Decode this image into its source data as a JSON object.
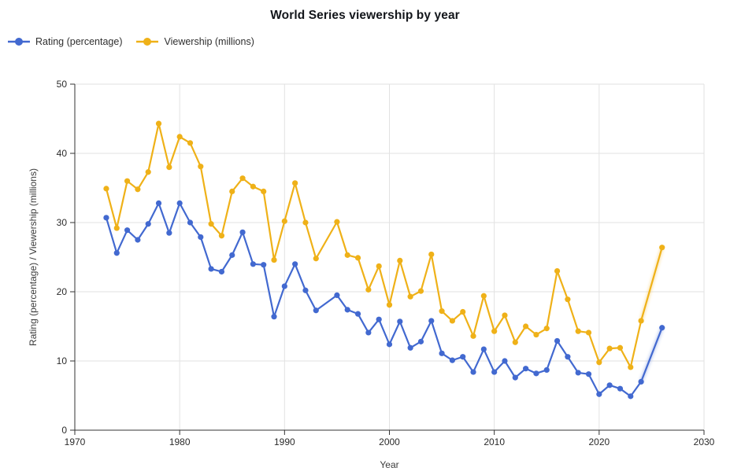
{
  "page": {
    "background": "#ffffff"
  },
  "chart_data": {
    "type": "line",
    "title": "World Series viewership by year",
    "xlabel": "Year",
    "ylabel": "Rating (percentage) / Viewership (millions)",
    "xlim": [
      1970,
      2030
    ],
    "ylim": [
      0,
      50
    ],
    "x_ticks": [
      1970,
      1980,
      1990,
      2000,
      2010,
      2020,
      2030
    ],
    "y_ticks": [
      0,
      10,
      20,
      30,
      40,
      50
    ],
    "grid": true,
    "legend_position": "top-left",
    "missing_years": [
      1994,
      2025
    ],
    "colors": {
      "rating": "#4269d0",
      "viewership": "#efb118",
      "grid_line": "#e2e2e2",
      "axis_line": "#333333",
      "tick_text": "#2b2b2b",
      "title_text": "#13161b"
    },
    "series": [
      {
        "name": "Rating (percentage)",
        "color": "#4269d0",
        "marker": "circle",
        "points": [
          [
            1973,
            30.7
          ],
          [
            1974,
            25.6
          ],
          [
            1975,
            28.9
          ],
          [
            1976,
            27.5
          ],
          [
            1977,
            29.8
          ],
          [
            1978,
            32.8
          ],
          [
            1979,
            28.5
          ],
          [
            1980,
            32.8
          ],
          [
            1981,
            30.0
          ],
          [
            1982,
            27.9
          ],
          [
            1983,
            23.3
          ],
          [
            1984,
            22.9
          ],
          [
            1985,
            25.3
          ],
          [
            1986,
            28.6
          ],
          [
            1987,
            24.0
          ],
          [
            1988,
            23.9
          ],
          [
            1989,
            16.4
          ],
          [
            1990,
            20.8
          ],
          [
            1991,
            24.0
          ],
          [
            1992,
            20.2
          ],
          [
            1993,
            17.3
          ],
          [
            1995,
            19.5
          ],
          [
            1996,
            17.4
          ],
          [
            1997,
            16.8
          ],
          [
            1998,
            14.1
          ],
          [
            1999,
            16.0
          ],
          [
            2000,
            12.4
          ],
          [
            2001,
            15.7
          ],
          [
            2002,
            11.9
          ],
          [
            2003,
            12.8
          ],
          [
            2004,
            15.8
          ],
          [
            2005,
            11.1
          ],
          [
            2006,
            10.1
          ],
          [
            2007,
            10.6
          ],
          [
            2008,
            8.4
          ],
          [
            2009,
            11.7
          ],
          [
            2010,
            8.4
          ],
          [
            2011,
            10.0
          ],
          [
            2012,
            7.6
          ],
          [
            2013,
            8.9
          ],
          [
            2014,
            8.2
          ],
          [
            2015,
            8.7
          ],
          [
            2016,
            12.9
          ],
          [
            2017,
            10.6
          ],
          [
            2018,
            8.3
          ],
          [
            2019,
            8.1
          ],
          [
            2020,
            5.2
          ],
          [
            2021,
            6.5
          ],
          [
            2022,
            6.0
          ],
          [
            2023,
            4.9
          ],
          [
            2024,
            7.0
          ],
          [
            2026,
            14.8
          ]
        ]
      },
      {
        "name": "Viewership (millions)",
        "color": "#efb118",
        "marker": "circle",
        "points": [
          [
            1973,
            34.9
          ],
          [
            1974,
            29.2
          ],
          [
            1975,
            36.0
          ],
          [
            1976,
            34.8
          ],
          [
            1977,
            37.3
          ],
          [
            1978,
            44.3
          ],
          [
            1979,
            38.0
          ],
          [
            1980,
            42.4
          ],
          [
            1981,
            41.5
          ],
          [
            1982,
            38.1
          ],
          [
            1983,
            29.8
          ],
          [
            1984,
            28.1
          ],
          [
            1985,
            34.5
          ],
          [
            1986,
            36.4
          ],
          [
            1987,
            35.2
          ],
          [
            1988,
            34.5
          ],
          [
            1989,
            24.6
          ],
          [
            1990,
            30.2
          ],
          [
            1991,
            35.7
          ],
          [
            1992,
            30.0
          ],
          [
            1993,
            24.8
          ],
          [
            1995,
            30.1
          ],
          [
            1996,
            25.3
          ],
          [
            1997,
            24.9
          ],
          [
            1998,
            20.3
          ],
          [
            1999,
            23.7
          ],
          [
            2000,
            18.1
          ],
          [
            2001,
            24.5
          ],
          [
            2002,
            19.3
          ],
          [
            2003,
            20.1
          ],
          [
            2004,
            25.4
          ],
          [
            2005,
            17.2
          ],
          [
            2006,
            15.8
          ],
          [
            2007,
            17.1
          ],
          [
            2008,
            13.6
          ],
          [
            2009,
            19.4
          ],
          [
            2010,
            14.3
          ],
          [
            2011,
            16.6
          ],
          [
            2012,
            12.7
          ],
          [
            2013,
            15.0
          ],
          [
            2014,
            13.8
          ],
          [
            2015,
            14.7
          ],
          [
            2016,
            23.0
          ],
          [
            2017,
            18.9
          ],
          [
            2018,
            14.3
          ],
          [
            2019,
            14.1
          ],
          [
            2020,
            9.8
          ],
          [
            2021,
            11.8
          ],
          [
            2022,
            11.9
          ],
          [
            2023,
            9.1
          ],
          [
            2024,
            15.8
          ],
          [
            2026,
            26.4
          ]
        ]
      }
    ]
  }
}
